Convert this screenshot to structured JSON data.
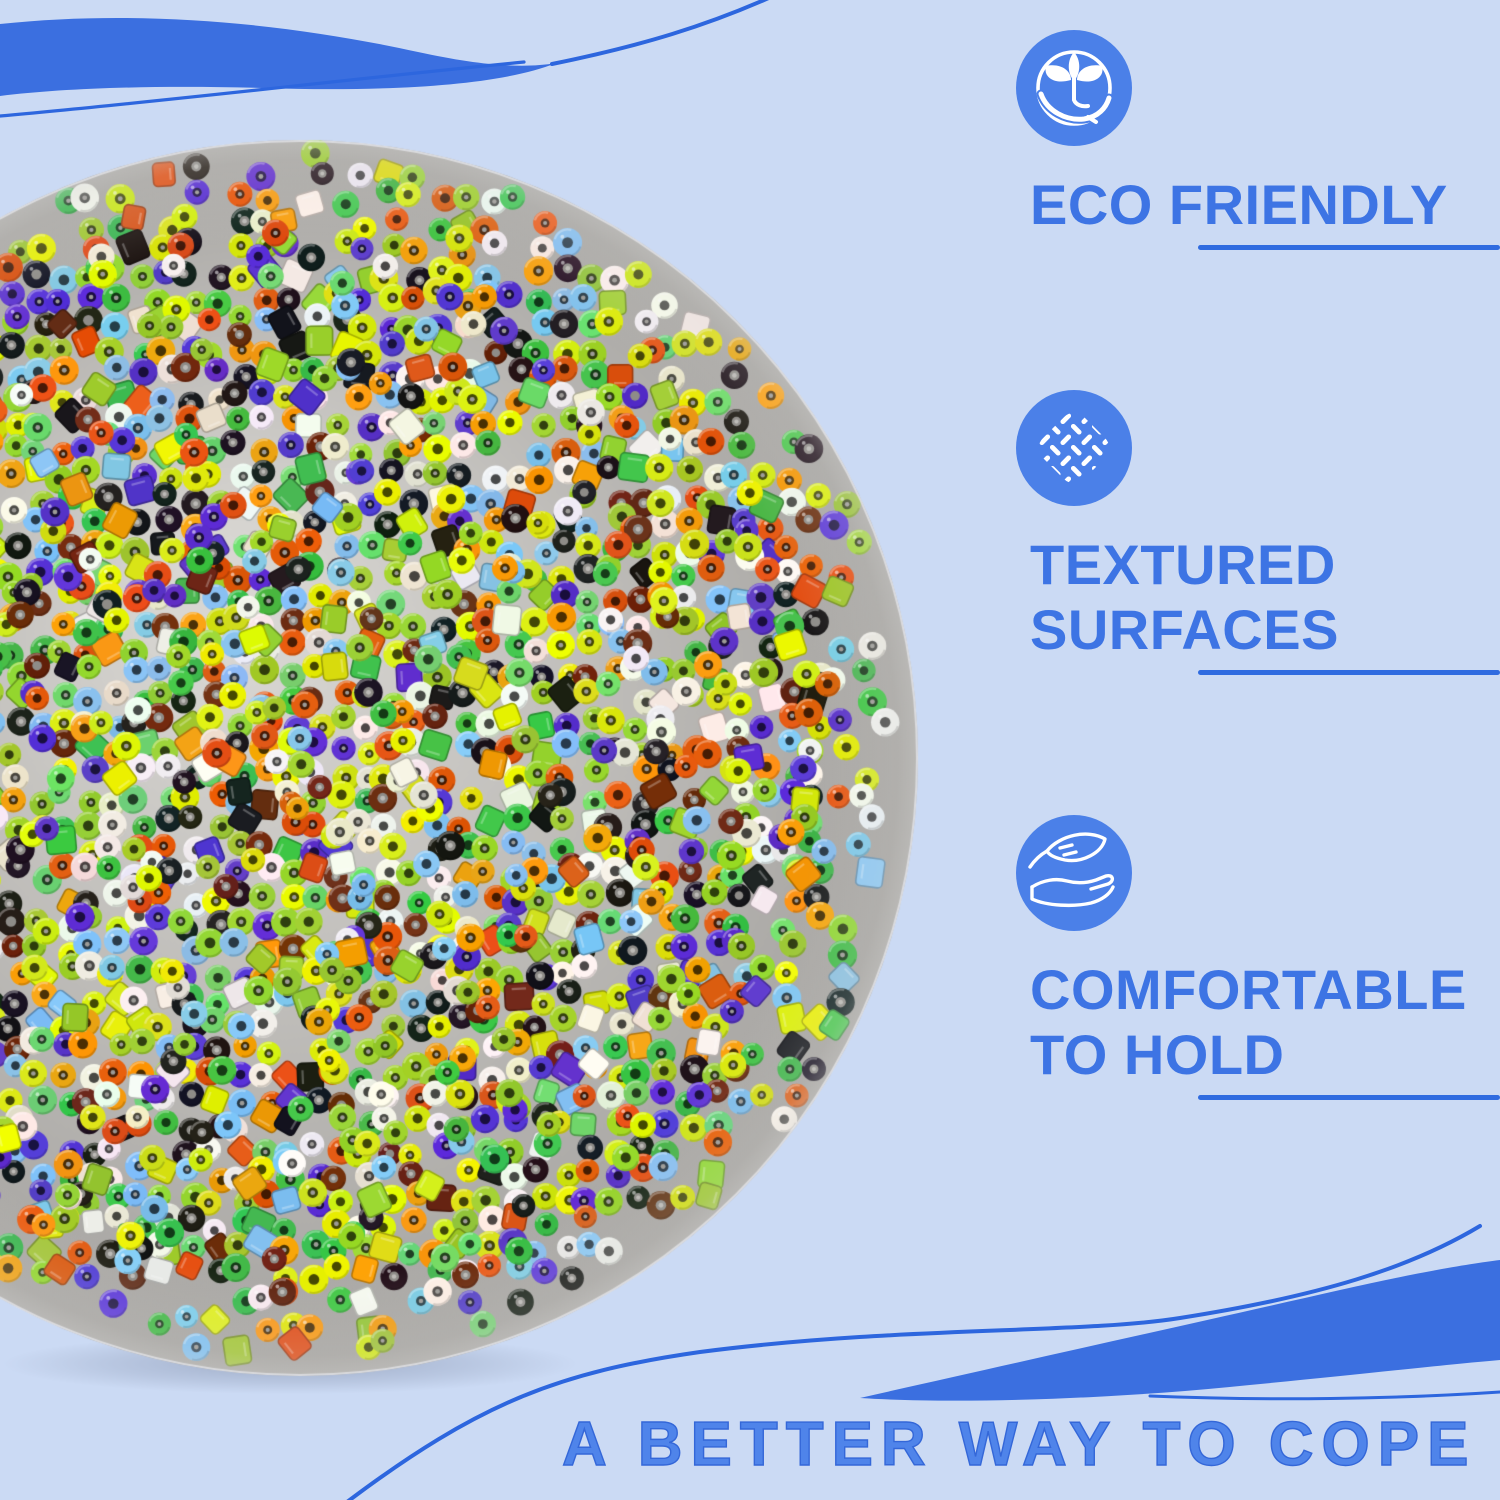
{
  "colors": {
    "background": "#cbdaf4",
    "wave_fill": "#3b6fe0",
    "wave_line": "#2d66de",
    "icon_circle": "#4b80e8",
    "icon_glyph": "#ffffff",
    "feature_text": "#3d74e4",
    "divider": "#2f6be0",
    "headline": "#4f84ea",
    "photo_backing": "#aaa8a4"
  },
  "features": [
    {
      "icon": "plant-in-hand-icon",
      "lines": [
        "ECO FRIENDLY"
      ]
    },
    {
      "icon": "woven-texture-icon",
      "lines": [
        "TEXTURED",
        "SURFACES"
      ]
    },
    {
      "icon": "feather-in-hand-icon",
      "lines": [
        "COMFORTABLE",
        "TO HOLD"
      ]
    }
  ],
  "headline": "A BETTER WAY TO COPE",
  "photo": {
    "description": "macro photo of a round translucent sensory ball filled with multicolored glass seed beads",
    "backing_color_center": "#d8d6d2",
    "backing_color_edge": "#a5a3a0",
    "bead_palette": [
      {
        "name": "lime-green",
        "color": "#9ccf2e",
        "w": 3.0
      },
      {
        "name": "chartreuse",
        "color": "#d6e713",
        "w": 2.4
      },
      {
        "name": "yellow",
        "color": "#e9f400",
        "w": 1.2
      },
      {
        "name": "green",
        "color": "#3fbf49",
        "w": 2.0
      },
      {
        "name": "light-green",
        "color": "#6fd96f",
        "w": 0.8
      },
      {
        "name": "orange",
        "color": "#f49d0c",
        "w": 1.6
      },
      {
        "name": "red-orange",
        "color": "#e2560f",
        "w": 1.6
      },
      {
        "name": "white",
        "color": "#f4f2ec",
        "w": 2.6
      },
      {
        "name": "cream",
        "color": "#ece5cf",
        "w": 1.0
      },
      {
        "name": "black",
        "color": "#1b1b1b",
        "w": 2.6
      },
      {
        "name": "light-blue",
        "color": "#82c4ee",
        "w": 1.6
      },
      {
        "name": "purple",
        "color": "#5a35cf",
        "w": 2.0
      },
      {
        "name": "dark-brown",
        "color": "#6b2a10",
        "w": 0.9
      }
    ]
  }
}
